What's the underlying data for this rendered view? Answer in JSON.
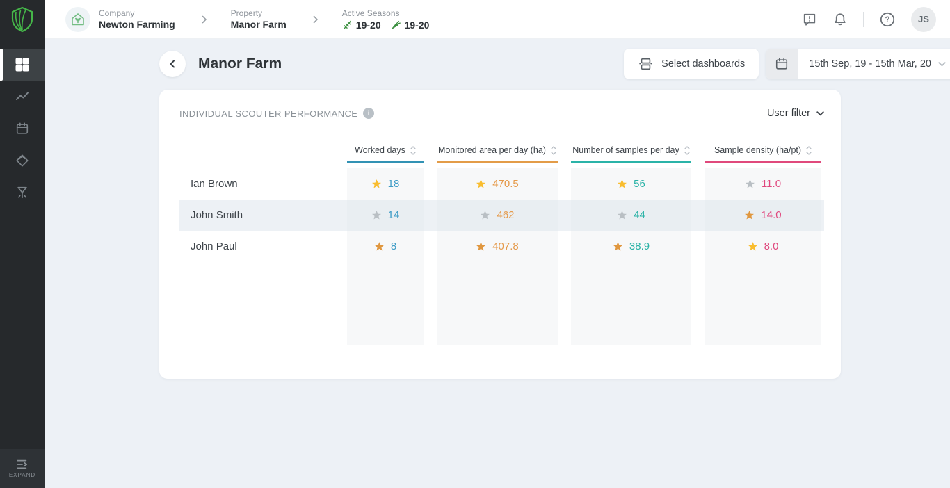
{
  "topbar": {
    "breadcrumb": {
      "company_label": "Company",
      "company_value": "Newton Farming",
      "property_label": "Property",
      "property_value": "Manor Farm",
      "seasons_label": "Active Seasons",
      "season1": "19-20",
      "season2": "19-20"
    },
    "avatar_initials": "JS"
  },
  "sidebar": {
    "expand_label": "EXPAND"
  },
  "page_header": {
    "title": "Manor Farm",
    "select_dashboards": "Select dashboards",
    "date_range": "15th Sep, 19 - 15th Mar, 20"
  },
  "card": {
    "title": "INDIVIDUAL SCOUTER PERFORMANCE",
    "info_glyph": "i",
    "user_filter": "User filter"
  },
  "table": {
    "columns": [
      {
        "label": "Worked days",
        "underline_color": "#3292b4",
        "value_color": "#3e9cc6"
      },
      {
        "label": "Monitored area per day (ha)",
        "underline_color": "#e39c48",
        "value_color": "#e59a4b"
      },
      {
        "label": "Number of samples per day",
        "underline_color": "#2bb3a8",
        "value_color": "#29b2a6"
      },
      {
        "label": "Sample density (ha/pt)",
        "underline_color": "#e0497c",
        "value_color": "#e0487e"
      }
    ],
    "star_colors": {
      "gold": "#f9bd2f",
      "gray": "#b9bfc4",
      "orange": "#e0973f"
    },
    "rows": [
      {
        "name": "Ian Brown",
        "highlighted": false,
        "cells": [
          {
            "value": "18",
            "star": "gold"
          },
          {
            "value": "470.5",
            "star": "gold"
          },
          {
            "value": "56",
            "star": "gold"
          },
          {
            "value": "11.0",
            "star": "gray"
          }
        ]
      },
      {
        "name": "John Smith",
        "highlighted": true,
        "cells": [
          {
            "value": "14",
            "star": "gray"
          },
          {
            "value": "462",
            "star": "gray"
          },
          {
            "value": "44",
            "star": "gray"
          },
          {
            "value": "14.0",
            "star": "orange"
          }
        ]
      },
      {
        "name": "John Paul",
        "highlighted": false,
        "cells": [
          {
            "value": "8",
            "star": "orange"
          },
          {
            "value": "407.8",
            "star": "orange"
          },
          {
            "value": "38.9",
            "star": "orange"
          },
          {
            "value": "8.0",
            "star": "gold"
          }
        ]
      }
    ]
  }
}
